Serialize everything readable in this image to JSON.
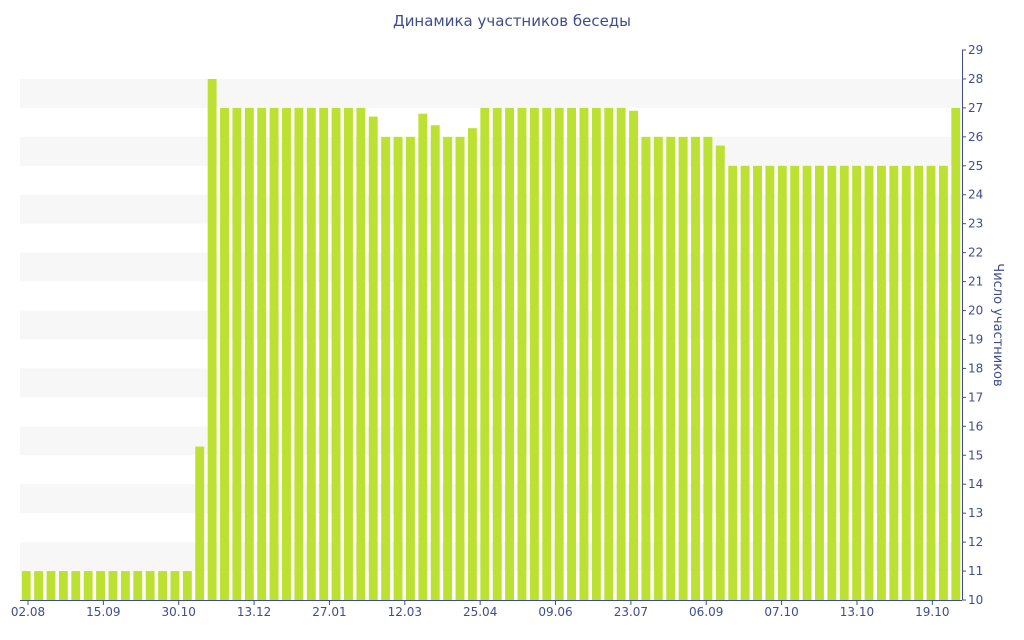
{
  "chart_data": {
    "type": "bar",
    "title": "Динамика участников беседы",
    "xlabel": "",
    "ylabel": "Число участников",
    "ylim": [
      10,
      29
    ],
    "y_axis_side": "right",
    "y_ticks": [
      10,
      11,
      12,
      13,
      14,
      15,
      16,
      17,
      18,
      19,
      20,
      21,
      22,
      23,
      24,
      25,
      26,
      27,
      28,
      29
    ],
    "x_tick_labels": [
      "02.08",
      "15.09",
      "30.10",
      "13.12",
      "27.01",
      "12.03",
      "25.04",
      "09.06",
      "23.07",
      "06.09",
      "07.10",
      "13.10",
      "19.10"
    ],
    "bar_color": "#bde133",
    "band_color": "#f7f7f7",
    "grid": "alternating horizontal bands",
    "values": [
      11,
      11,
      11,
      11,
      11,
      11,
      11,
      11,
      11,
      11,
      11,
      11,
      11,
      11,
      15.3,
      28,
      27,
      27,
      27,
      27,
      27,
      27,
      27,
      27,
      27,
      27,
      27,
      27,
      26.7,
      26,
      26,
      26,
      26.8,
      26.4,
      26,
      26,
      26.3,
      27,
      27,
      27,
      27,
      27,
      27,
      27,
      27,
      27,
      27,
      27,
      27,
      26.9,
      26,
      26,
      26,
      26,
      26,
      26,
      25.7,
      25,
      25,
      25,
      25,
      25,
      25,
      25,
      25,
      25,
      25,
      25,
      25,
      25,
      25,
      25,
      25,
      25,
      25,
      27
    ]
  }
}
